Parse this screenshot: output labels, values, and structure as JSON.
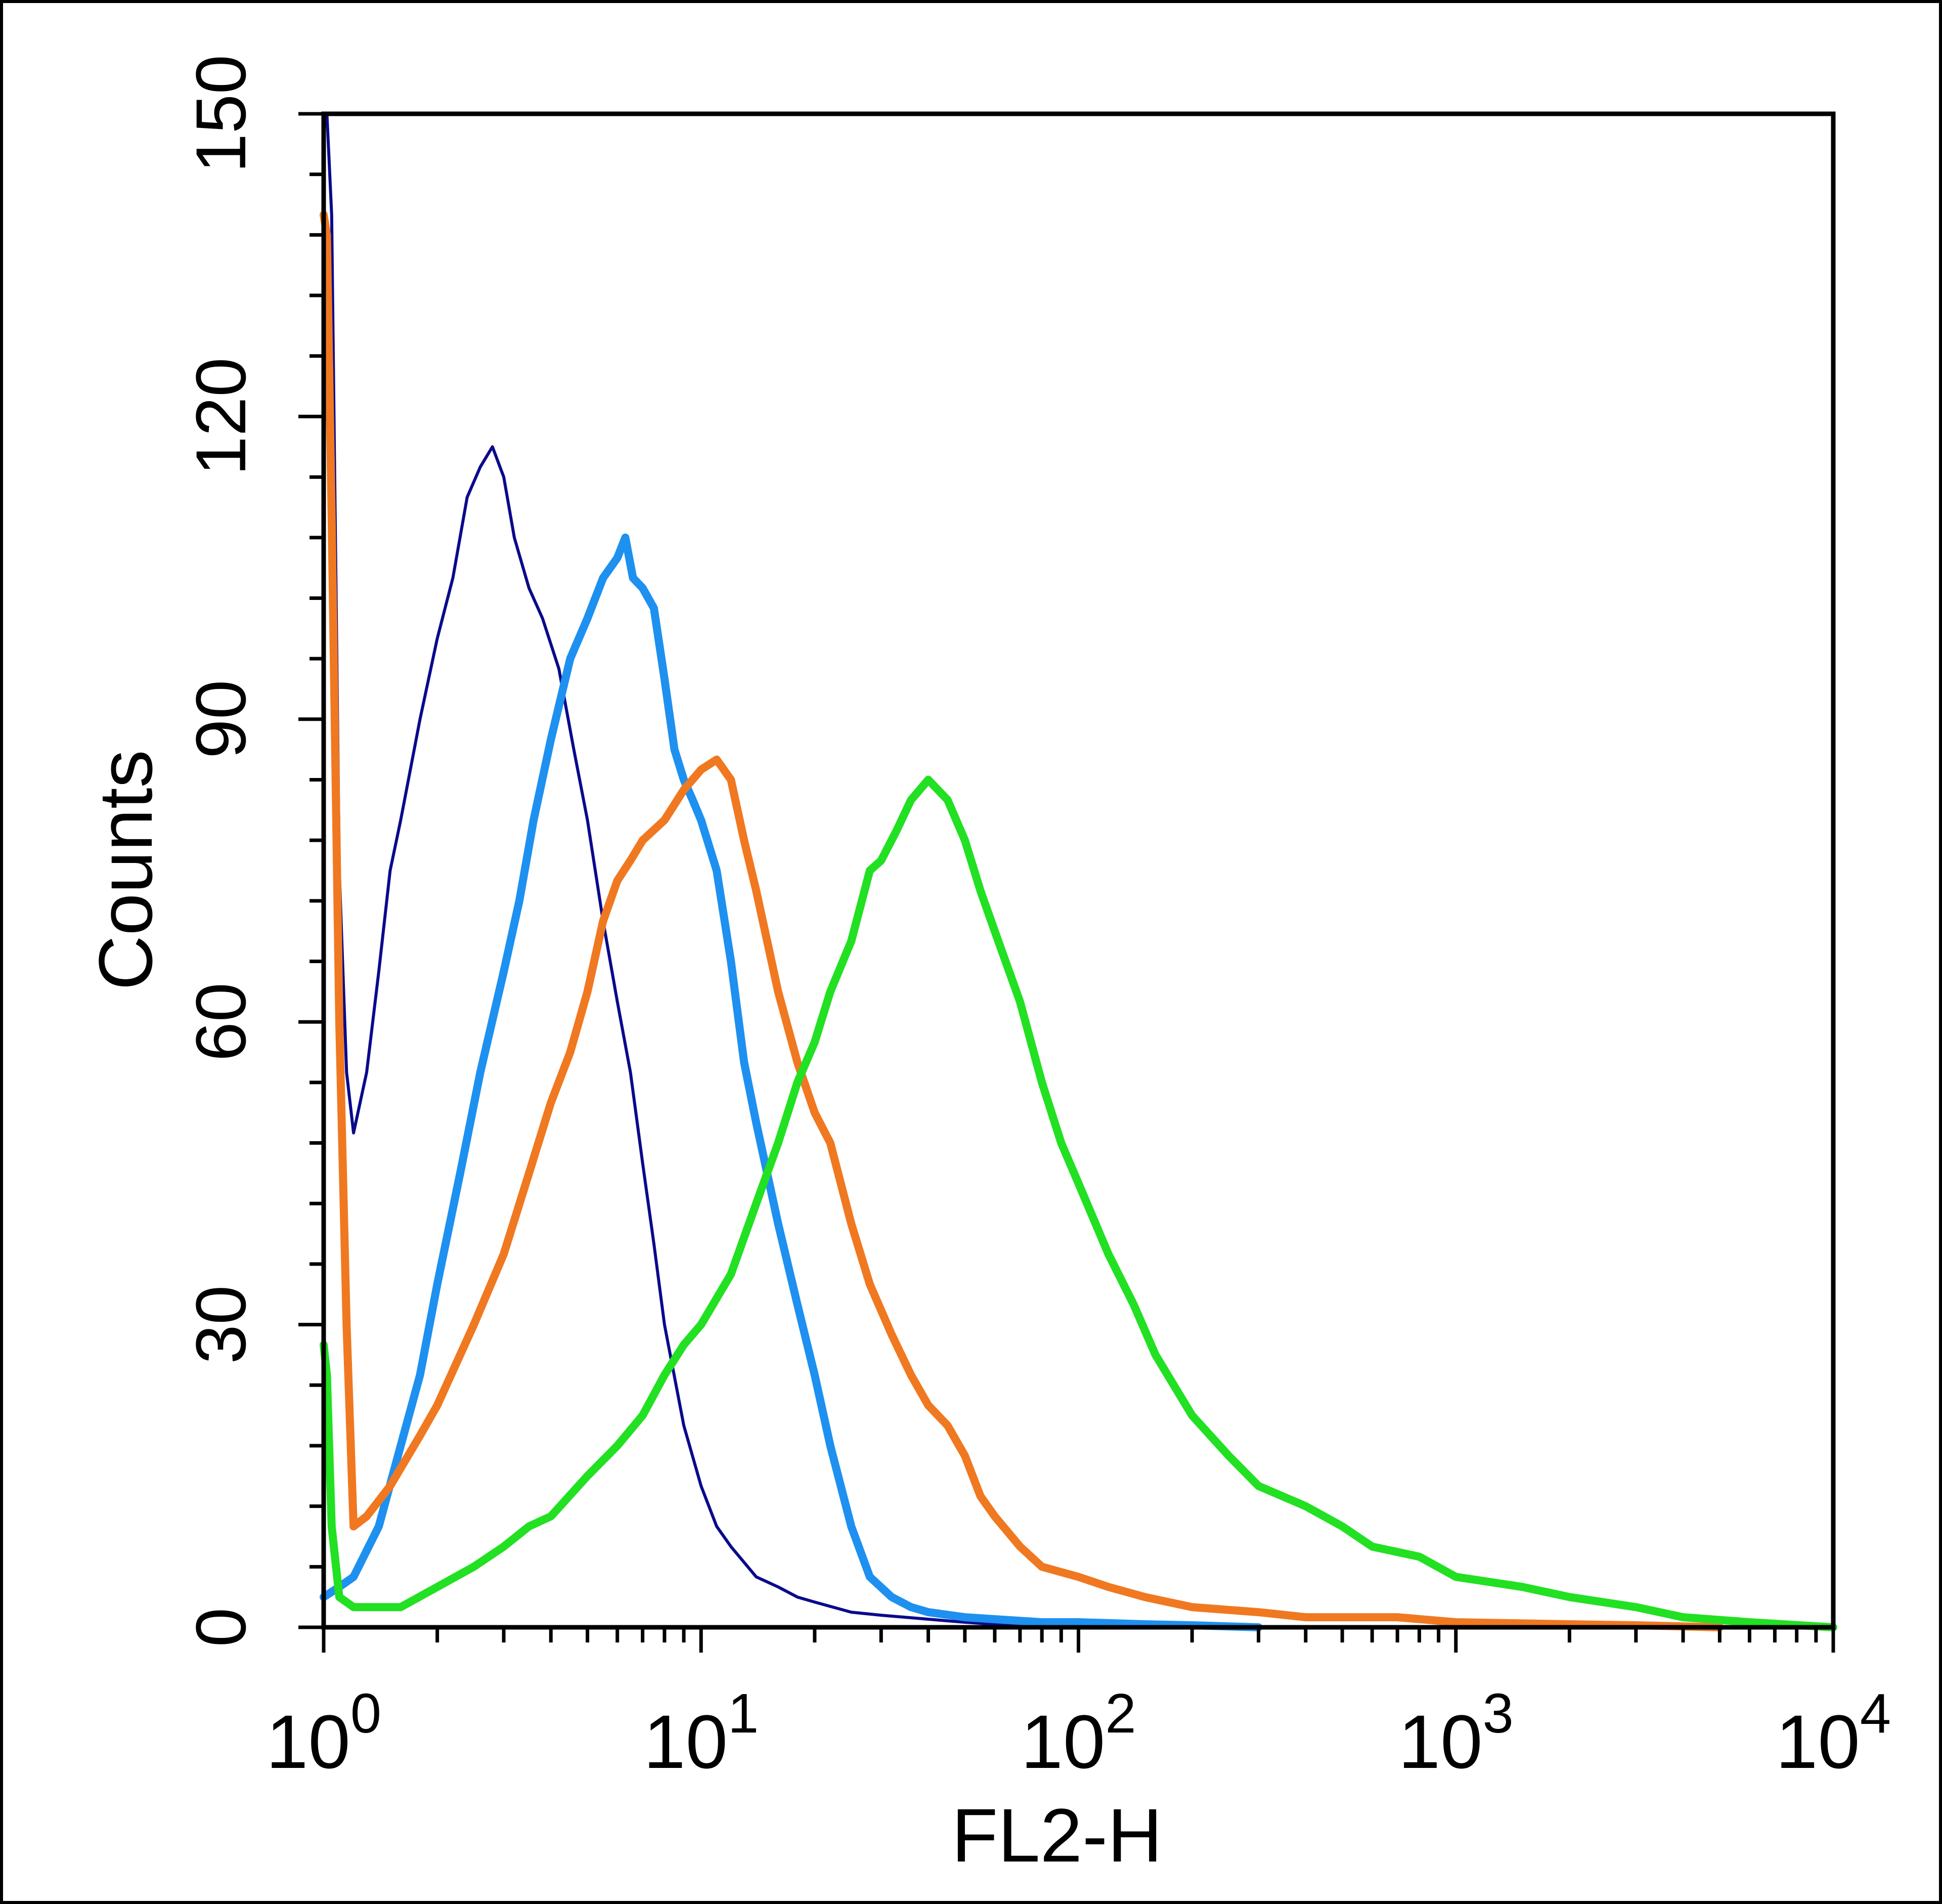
{
  "chart_data": {
    "type": "line",
    "title": "",
    "xlabel": "FL2-H",
    "ylabel": "Counts",
    "x_scale": "log",
    "xlim": [
      1,
      10000
    ],
    "ylim": [
      0,
      150
    ],
    "grid": false,
    "legend": "none",
    "x_ticks": [
      {
        "value": 1,
        "base": "10",
        "exp": "0"
      },
      {
        "value": 10,
        "base": "10",
        "exp": "1"
      },
      {
        "value": 100,
        "base": "10",
        "exp": "2"
      },
      {
        "value": 1000,
        "base": "10",
        "exp": "3"
      },
      {
        "value": 10000,
        "base": "10",
        "exp": "4"
      }
    ],
    "y_ticks": [
      {
        "value": 0,
        "label": "0"
      },
      {
        "value": 30,
        "label": "30"
      },
      {
        "value": 60,
        "label": "60"
      },
      {
        "value": 90,
        "label": "90"
      },
      {
        "value": 120,
        "label": "120"
      },
      {
        "value": 150,
        "label": "150"
      }
    ],
    "series": [
      {
        "color": "#0a0a8c",
        "x": [
          1,
          1.02,
          1.05,
          1.1,
          1.15,
          1.2,
          1.3,
          1.4,
          1.5,
          1.6,
          1.8,
          2.0,
          2.2,
          2.4,
          2.6,
          2.8,
          3.0,
          3.2,
          3.5,
          3.8,
          4.2,
          4.6,
          5.0,
          5.5,
          6.0,
          6.5,
          7.0,
          7.5,
          8.0,
          9.0,
          10,
          11,
          12,
          14,
          16,
          18,
          20,
          25,
          30,
          40,
          50,
          60,
          70,
          80,
          100
        ],
        "y": [
          150,
          150,
          140,
          75,
          55,
          49,
          55,
          65,
          75,
          80,
          90,
          98,
          104,
          112,
          115,
          117,
          114,
          108,
          103,
          100,
          95,
          87,
          80,
          70,
          62,
          55,
          46,
          38,
          30,
          20,
          14,
          10,
          8,
          5,
          4,
          3,
          2.5,
          1.5,
          1.2,
          0.8,
          0.5,
          0.3,
          0.2,
          0.1,
          0
        ]
      },
      {
        "color": "#1e90f0",
        "x": [
          1,
          1.1,
          1.2,
          1.4,
          1.6,
          1.8,
          2.0,
          2.3,
          2.6,
          3.0,
          3.3,
          3.6,
          4.0,
          4.5,
          5.0,
          5.5,
          6.0,
          6.3,
          6.6,
          7.0,
          7.5,
          8.0,
          8.5,
          9.0,
          9.5,
          10,
          11,
          12,
          13,
          14,
          16,
          18,
          20,
          22,
          25,
          28,
          32,
          36,
          40,
          50,
          60,
          80,
          100,
          150,
          200,
          300
        ],
        "y": [
          3,
          4,
          5,
          10,
          18,
          25,
          34,
          45,
          55,
          65,
          72,
          80,
          88,
          96,
          100,
          104,
          106,
          108,
          104,
          103,
          101,
          94,
          87,
          84,
          82,
          80,
          75,
          66,
          56,
          50,
          40,
          32,
          25,
          18,
          10,
          5,
          3,
          2,
          1.5,
          1,
          0.8,
          0.5,
          0.5,
          0.3,
          0.2,
          0
        ]
      },
      {
        "color": "#f07820",
        "x": [
          1,
          1.02,
          1.05,
          1.1,
          1.15,
          1.2,
          1.3,
          1.5,
          1.8,
          2.0,
          2.5,
          3.0,
          3.5,
          4.0,
          4.5,
          5.0,
          5.5,
          6.0,
          6.5,
          7.0,
          8.0,
          9.0,
          10,
          11,
          12,
          13,
          14,
          16,
          18,
          20,
          22,
          25,
          28,
          32,
          36,
          40,
          45,
          50,
          55,
          60,
          70,
          80,
          100,
          120,
          150,
          200,
          300,
          400,
          500,
          700,
          1000,
          2000,
          3000,
          5000
        ],
        "y": [
          140,
          138,
          110,
          60,
          30,
          10,
          11,
          14,
          19,
          22,
          30,
          37,
          45,
          52,
          57,
          63,
          70,
          74,
          76,
          78,
          80,
          83,
          85,
          86,
          84,
          78,
          73,
          63,
          56,
          51,
          48,
          40,
          34,
          29,
          25,
          22,
          20,
          17,
          13,
          11,
          8,
          6,
          5,
          4,
          3,
          2,
          1.5,
          1,
          1,
          1,
          0.5,
          0.3,
          0.2,
          0
        ]
      },
      {
        "color": "#22e022",
        "x": [
          1,
          1.02,
          1.05,
          1.1,
          1.2,
          1.4,
          1.6,
          2.0,
          2.5,
          3.0,
          3.5,
          4.0,
          5.0,
          6.0,
          7.0,
          8.0,
          9.0,
          10,
          12,
          14,
          16,
          18,
          20,
          22,
          25,
          28,
          30,
          33,
          36,
          40,
          45,
          50,
          55,
          60,
          70,
          80,
          90,
          100,
          120,
          140,
          160,
          200,
          250,
          300,
          400,
          500,
          600,
          800,
          1000,
          1500,
          2000,
          3000,
          4000,
          6000,
          10000
        ],
        "y": [
          28,
          25,
          10,
          3,
          2,
          2,
          2,
          4,
          6,
          8,
          10,
          11,
          15,
          18,
          21,
          25,
          28,
          30,
          35,
          42,
          48,
          54,
          58,
          63,
          68,
          75,
          76,
          79,
          82,
          84,
          82,
          78,
          73,
          69,
          62,
          54,
          48,
          44,
          37,
          32,
          27,
          21,
          17,
          14,
          12,
          10,
          8,
          7,
          5,
          4,
          3,
          2,
          1,
          0.5,
          0
        ]
      }
    ]
  }
}
